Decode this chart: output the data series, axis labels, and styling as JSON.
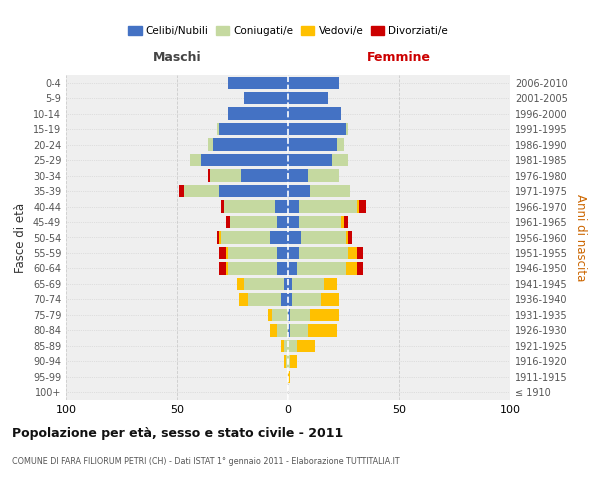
{
  "age_groups": [
    "100+",
    "95-99",
    "90-94",
    "85-89",
    "80-84",
    "75-79",
    "70-74",
    "65-69",
    "60-64",
    "55-59",
    "50-54",
    "45-49",
    "40-44",
    "35-39",
    "30-34",
    "25-29",
    "20-24",
    "15-19",
    "10-14",
    "5-9",
    "0-4"
  ],
  "birth_years": [
    "≤ 1910",
    "1911-1915",
    "1916-1920",
    "1921-1925",
    "1926-1930",
    "1931-1935",
    "1936-1940",
    "1941-1945",
    "1946-1950",
    "1951-1955",
    "1956-1960",
    "1961-1965",
    "1966-1970",
    "1971-1975",
    "1976-1980",
    "1981-1985",
    "1986-1990",
    "1991-1995",
    "1996-2000",
    "2001-2005",
    "2006-2010"
  ],
  "maschi_celibi": [
    0,
    0,
    0,
    0,
    0,
    0,
    3,
    2,
    5,
    5,
    8,
    5,
    6,
    31,
    21,
    39,
    34,
    31,
    27,
    20,
    27
  ],
  "maschi_coniugati": [
    0,
    0,
    1,
    2,
    5,
    7,
    15,
    18,
    22,
    22,
    22,
    21,
    23,
    16,
    14,
    5,
    2,
    1,
    0,
    0,
    0
  ],
  "maschi_vedovi": [
    0,
    0,
    1,
    1,
    3,
    2,
    4,
    3,
    1,
    1,
    1,
    0,
    0,
    0,
    0,
    0,
    0,
    0,
    0,
    0,
    0
  ],
  "maschi_divorziati": [
    0,
    0,
    0,
    0,
    0,
    0,
    0,
    0,
    3,
    3,
    1,
    2,
    1,
    2,
    1,
    0,
    0,
    0,
    0,
    0,
    0
  ],
  "femmine_celibi": [
    0,
    0,
    0,
    0,
    1,
    1,
    2,
    2,
    4,
    5,
    6,
    5,
    5,
    10,
    9,
    20,
    22,
    26,
    24,
    18,
    23
  ],
  "femmine_coniugati": [
    0,
    0,
    1,
    4,
    8,
    9,
    13,
    14,
    22,
    22,
    20,
    19,
    26,
    18,
    14,
    7,
    3,
    1,
    0,
    0,
    0
  ],
  "femmine_vedovi": [
    0,
    1,
    3,
    8,
    13,
    13,
    8,
    6,
    5,
    4,
    1,
    1,
    1,
    0,
    0,
    0,
    0,
    0,
    0,
    0,
    0
  ],
  "femmine_divorziati": [
    0,
    0,
    0,
    0,
    0,
    0,
    0,
    0,
    3,
    3,
    2,
    2,
    3,
    0,
    0,
    0,
    0,
    0,
    0,
    0,
    0
  ],
  "colors": {
    "celibi": "#4472C4",
    "coniugati": "#c5d9a0",
    "vedovi": "#ffc000",
    "divorziati": "#cc0000"
  },
  "xlim": 100,
  "title": "Popolazione per età, sesso e stato civile - 2011",
  "subtitle": "COMUNE DI FARA FILIORUM PETRI (CH) - Dati ISTAT 1° gennaio 2011 - Elaborazione TUTTITALIA.IT",
  "ylabel_left": "Fasce di età",
  "ylabel_right": "Anni di nascita",
  "header_maschi": "Maschi",
  "header_femmine": "Femmine",
  "legend_labels": [
    "Celibi/Nubili",
    "Coniugati/e",
    "Vedovi/e",
    "Divorziati/e"
  ],
  "bg_color": "#efefef",
  "xtick_labels": [
    "100",
    "50",
    "0",
    "50",
    "100"
  ]
}
